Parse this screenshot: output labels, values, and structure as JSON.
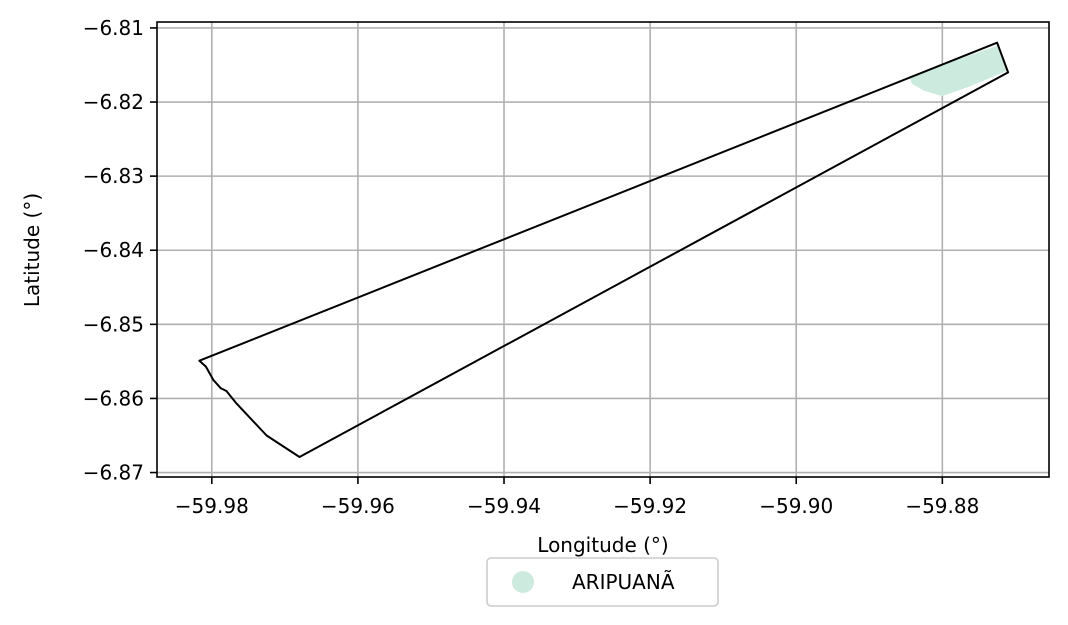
{
  "chart_data": {
    "type": "map",
    "xlabel": "Longitude (°)",
    "ylabel": "Latitude (°)",
    "xlim": [
      -59.9875,
      -59.8654
    ],
    "ylim": [
      -6.8706,
      -6.8092
    ],
    "grid": true,
    "x_ticks": [
      {
        "value": -59.98,
        "label": "−59.98"
      },
      {
        "value": -59.96,
        "label": "−59.96"
      },
      {
        "value": -59.94,
        "label": "−59.94"
      },
      {
        "value": -59.92,
        "label": "−59.92"
      },
      {
        "value": -59.9,
        "label": "−59.90"
      },
      {
        "value": -59.88,
        "label": "−59.88"
      }
    ],
    "y_ticks": [
      {
        "value": -6.81,
        "label": "−6.81"
      },
      {
        "value": -6.82,
        "label": "−6.82"
      },
      {
        "value": -6.83,
        "label": "−6.83"
      },
      {
        "value": -6.84,
        "label": "−6.84"
      },
      {
        "value": -6.85,
        "label": "−6.85"
      },
      {
        "value": -6.86,
        "label": "−6.86"
      },
      {
        "value": -6.87,
        "label": "−6.87"
      }
    ],
    "boundary": {
      "stroke": "#000000",
      "points": [
        [
          -59.9817,
          -6.8549
        ],
        [
          -59.8725,
          -6.812
        ],
        [
          -59.871,
          -6.816
        ],
        [
          -59.968,
          -6.8679
        ],
        [
          -59.9725,
          -6.865
        ],
        [
          -59.9766,
          -6.8607
        ],
        [
          -59.978,
          -6.859
        ],
        [
          -59.9788,
          -6.8586
        ],
        [
          -59.9798,
          -6.8575
        ],
        [
          -59.9808,
          -6.8557
        ]
      ]
    },
    "region": {
      "name": "ARIPUANÃ",
      "color": "#cdeade",
      "points": [
        [
          -59.8845,
          -6.8165
        ],
        [
          -59.8725,
          -6.8124
        ],
        [
          -59.8712,
          -6.8158
        ],
        [
          -59.876,
          -6.8178
        ],
        [
          -59.88,
          -6.8192
        ],
        [
          -59.8825,
          -6.8185
        ],
        [
          -59.8842,
          -6.8175
        ]
      ]
    },
    "legend": {
      "placement": "bottom-center",
      "entries": [
        {
          "label": "ARIPUANÃ",
          "color": "#cdeade",
          "marker": "circle"
        }
      ]
    },
    "colors": {
      "grid": "#b0b0b0",
      "frame": "#000000"
    }
  }
}
